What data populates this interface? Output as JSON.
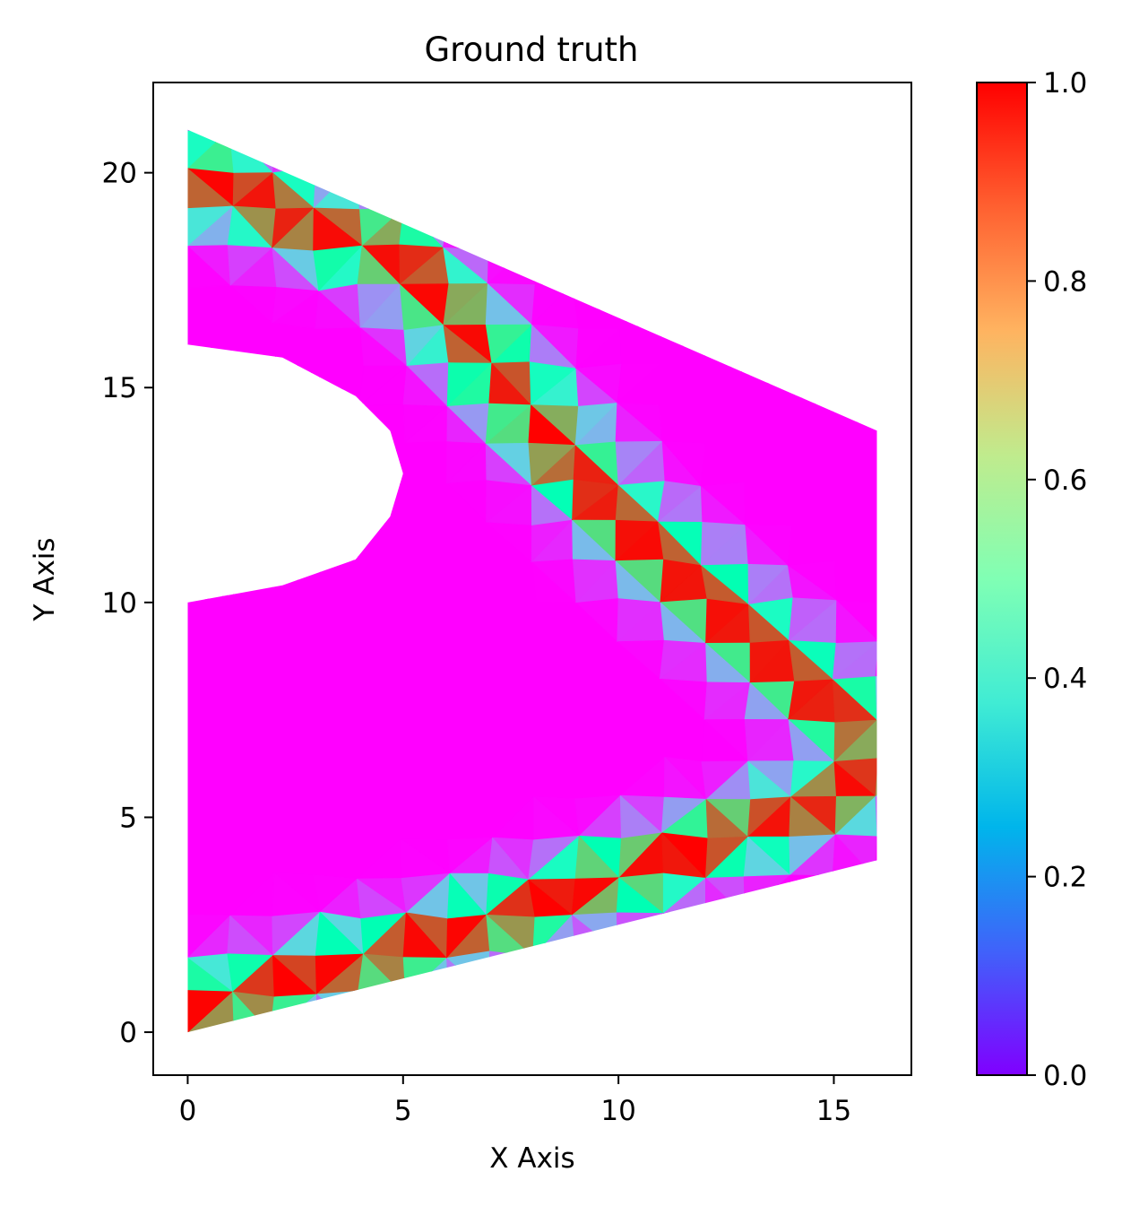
{
  "chart_data": {
    "type": "heatmap",
    "title": "Ground truth",
    "xlabel": "X Axis",
    "ylabel": "Y Axis",
    "xlim": [
      -0.8,
      16.8
    ],
    "ylim": [
      -1,
      22.1
    ],
    "xticks": [
      0,
      5,
      10,
      15
    ],
    "yticks": [
      0,
      5,
      10,
      15,
      20
    ],
    "colormap": "rainbow",
    "colorbar": {
      "min": 0.0,
      "max": 1.0,
      "ticks": [
        "0.0",
        "0.2",
        "0.4",
        "0.6",
        "0.8",
        "1.0"
      ]
    },
    "grid": false,
    "domain_outline": [
      [
        0,
        0
      ],
      [
        16,
        4
      ],
      [
        16,
        14
      ],
      [
        0,
        21
      ],
      [
        0,
        16
      ],
      [
        2.2,
        15.7
      ],
      [
        3.9,
        14.8
      ],
      [
        4.7,
        14
      ],
      [
        5,
        13
      ],
      [
        4.7,
        12
      ],
      [
        3.9,
        11
      ],
      [
        2.2,
        10.4
      ],
      [
        0,
        10
      ]
    ],
    "hole": {
      "center": [
        0,
        13
      ],
      "radius": 5
    },
    "bands": [
      {
        "name": "",
        "polyline": [
          [
            0,
            20
          ],
          [
            5,
            18
          ],
          [
            10,
            12
          ],
          [
            15,
            7.5
          ],
          [
            16,
            7
          ]
        ],
        "width": 2.2
      },
      {
        "name": "",
        "polyline": [
          [
            0,
            0.5
          ],
          [
            6,
            2.2
          ],
          [
            11,
            4
          ],
          [
            15,
            5.5
          ],
          [
            16,
            6
          ]
        ],
        "width": 2.0
      }
    ],
    "band_peak_value": 1.0,
    "background_value": 0.0,
    "mesh_resolution": {
      "nx": 17,
      "ny": 24
    }
  }
}
